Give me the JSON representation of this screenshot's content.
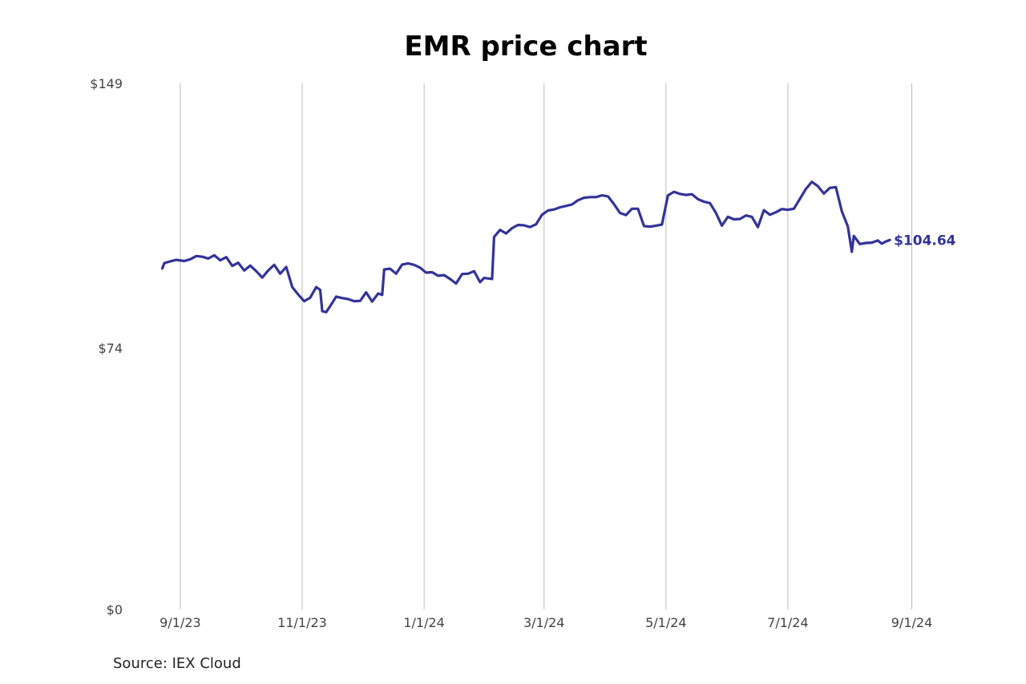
{
  "chart_data": {
    "type": "line",
    "title": "EMR price chart",
    "source": "Source: IEX Cloud",
    "ylim": [
      0,
      149
    ],
    "y_ticks": [
      {
        "value": 149,
        "label": "$149"
      },
      {
        "value": 74,
        "label": "$74"
      },
      {
        "value": 0,
        "label": "$0"
      }
    ],
    "x_range": [
      "2023-08-22",
      "2024-09-02"
    ],
    "x_ticks": [
      {
        "date": "2023-09-01",
        "label": "9/1/23"
      },
      {
        "date": "2023-11-01",
        "label": "11/1/23"
      },
      {
        "date": "2024-01-01",
        "label": "1/1/24"
      },
      {
        "date": "2024-03-01",
        "label": "3/1/24"
      },
      {
        "date": "2024-05-01",
        "label": "5/1/24"
      },
      {
        "date": "2024-07-01",
        "label": "7/1/24"
      },
      {
        "date": "2024-09-01",
        "label": "9/1/24"
      }
    ],
    "grid": "vertical",
    "line_color": "#33339a",
    "end_label": "$104.64",
    "series": [
      {
        "points": [
          [
            "2023-08-23",
            96.6
          ],
          [
            "2023-08-24",
            98.1
          ],
          [
            "2023-08-27",
            98.6
          ],
          [
            "2023-08-30",
            99.0
          ],
          [
            "2023-09-03",
            98.7
          ],
          [
            "2023-09-06",
            99.2
          ],
          [
            "2023-09-09",
            100.1
          ],
          [
            "2023-09-12",
            99.9
          ],
          [
            "2023-09-15",
            99.4
          ],
          [
            "2023-09-18",
            100.3
          ],
          [
            "2023-09-21",
            98.9
          ],
          [
            "2023-09-24",
            99.8
          ],
          [
            "2023-09-27",
            97.3
          ],
          [
            "2023-09-30",
            98.2
          ],
          [
            "2023-10-03",
            96.0
          ],
          [
            "2023-10-06",
            97.4
          ],
          [
            "2023-10-09",
            95.8
          ],
          [
            "2023-10-12",
            94.0
          ],
          [
            "2023-10-15",
            96.0
          ],
          [
            "2023-10-18",
            97.6
          ],
          [
            "2023-10-21",
            95.1
          ],
          [
            "2023-10-24",
            97.0
          ],
          [
            "2023-10-27",
            91.3
          ],
          [
            "2023-10-30",
            89.2
          ],
          [
            "2023-11-02",
            87.3
          ],
          [
            "2023-11-05",
            88.3
          ],
          [
            "2023-11-08",
            91.3
          ],
          [
            "2023-11-10",
            90.5
          ],
          [
            "2023-11-11",
            84.5
          ],
          [
            "2023-11-13",
            84.2
          ],
          [
            "2023-11-15",
            85.9
          ],
          [
            "2023-11-18",
            88.6
          ],
          [
            "2023-11-21",
            88.2
          ],
          [
            "2023-11-24",
            87.9
          ],
          [
            "2023-11-27",
            87.3
          ],
          [
            "2023-11-30",
            87.4
          ],
          [
            "2023-12-03",
            89.8
          ],
          [
            "2023-12-06",
            87.2
          ],
          [
            "2023-12-09",
            89.5
          ],
          [
            "2023-12-11",
            89.1
          ],
          [
            "2023-12-12",
            96.3
          ],
          [
            "2023-12-15",
            96.5
          ],
          [
            "2023-12-18",
            95.1
          ],
          [
            "2023-12-21",
            97.7
          ],
          [
            "2023-12-24",
            98.0
          ],
          [
            "2023-12-27",
            97.6
          ],
          [
            "2023-12-30",
            96.8
          ],
          [
            "2024-01-02",
            95.4
          ],
          [
            "2024-01-05",
            95.5
          ],
          [
            "2024-01-08",
            94.5
          ],
          [
            "2024-01-11",
            94.7
          ],
          [
            "2024-01-14",
            93.6
          ],
          [
            "2024-01-17",
            92.3
          ],
          [
            "2024-01-20",
            95.0
          ],
          [
            "2024-01-23",
            95.1
          ],
          [
            "2024-01-26",
            95.8
          ],
          [
            "2024-01-29",
            92.7
          ],
          [
            "2024-01-31",
            93.9
          ],
          [
            "2024-02-04",
            93.6
          ],
          [
            "2024-02-05",
            105.5
          ],
          [
            "2024-02-08",
            107.5
          ],
          [
            "2024-02-11",
            106.5
          ],
          [
            "2024-02-14",
            108.0
          ],
          [
            "2024-02-17",
            108.9
          ],
          [
            "2024-02-20",
            108.8
          ],
          [
            "2024-02-23",
            108.3
          ],
          [
            "2024-02-26",
            109.1
          ],
          [
            "2024-02-29",
            111.8
          ],
          [
            "2024-03-03",
            113.0
          ],
          [
            "2024-03-06",
            113.3
          ],
          [
            "2024-03-09",
            113.9
          ],
          [
            "2024-03-12",
            114.3
          ],
          [
            "2024-03-15",
            114.7
          ],
          [
            "2024-03-18",
            115.9
          ],
          [
            "2024-03-21",
            116.6
          ],
          [
            "2024-03-24",
            116.8
          ],
          [
            "2024-03-27",
            116.8
          ],
          [
            "2024-03-30",
            117.3
          ],
          [
            "2024-04-02",
            117.0
          ],
          [
            "2024-04-05",
            114.8
          ],
          [
            "2024-04-08",
            112.3
          ],
          [
            "2024-04-11",
            111.7
          ],
          [
            "2024-04-14",
            113.5
          ],
          [
            "2024-04-17",
            113.5
          ],
          [
            "2024-04-20",
            108.6
          ],
          [
            "2024-04-23",
            108.4
          ],
          [
            "2024-04-26",
            108.7
          ],
          [
            "2024-04-29",
            109.0
          ],
          [
            "2024-05-02",
            117.3
          ],
          [
            "2024-05-05",
            118.3
          ],
          [
            "2024-05-08",
            117.7
          ],
          [
            "2024-05-11",
            117.4
          ],
          [
            "2024-05-14",
            117.6
          ],
          [
            "2024-05-17",
            116.2
          ],
          [
            "2024-05-20",
            115.5
          ],
          [
            "2024-05-23",
            115.1
          ],
          [
            "2024-05-26",
            112.3
          ],
          [
            "2024-05-29",
            108.7
          ],
          [
            "2024-06-01",
            111.2
          ],
          [
            "2024-06-04",
            110.5
          ],
          [
            "2024-06-07",
            110.6
          ],
          [
            "2024-06-10",
            111.6
          ],
          [
            "2024-06-13",
            111.2
          ],
          [
            "2024-06-16",
            108.3
          ],
          [
            "2024-06-19",
            113.1
          ],
          [
            "2024-06-22",
            111.8
          ],
          [
            "2024-06-25",
            112.5
          ],
          [
            "2024-06-28",
            113.4
          ],
          [
            "2024-07-01",
            113.2
          ],
          [
            "2024-07-04",
            113.5
          ],
          [
            "2024-07-07",
            116.3
          ],
          [
            "2024-07-10",
            119.1
          ],
          [
            "2024-07-13",
            121.1
          ],
          [
            "2024-07-16",
            119.9
          ],
          [
            "2024-07-19",
            117.8
          ],
          [
            "2024-07-22",
            119.4
          ],
          [
            "2024-07-25",
            119.6
          ],
          [
            "2024-07-28",
            112.8
          ],
          [
            "2024-07-31",
            108.5
          ],
          [
            "2024-08-02",
            101.3
          ],
          [
            "2024-08-03",
            105.8
          ],
          [
            "2024-08-06",
            103.5
          ],
          [
            "2024-08-09",
            103.8
          ],
          [
            "2024-08-12",
            103.9
          ],
          [
            "2024-08-15",
            104.5
          ],
          [
            "2024-08-17",
            103.6
          ],
          [
            "2024-08-19",
            104.2
          ],
          [
            "2024-08-21",
            104.64
          ]
        ]
      }
    ]
  }
}
